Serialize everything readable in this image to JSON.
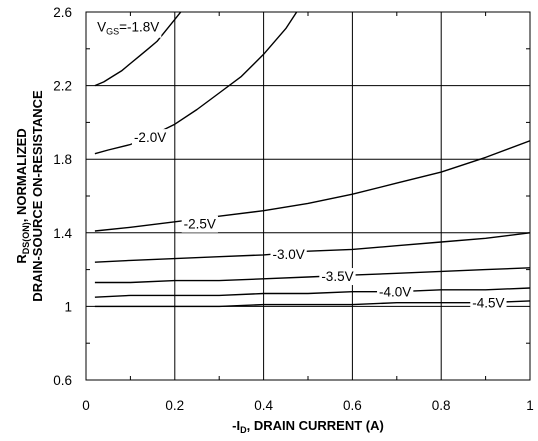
{
  "chart_data": {
    "type": "line",
    "title": "",
    "xlabel": {
      "prefix": "-I",
      "sub": "D",
      "rest": ", DRAIN CURRENT (A)"
    },
    "ylabel": {
      "line1_prefix": "R",
      "line1_sub": "DS(ON)",
      "line1_rest": ", NORMALIZED",
      "line2": "DRAIN-SOURCE ON-RESISTANCE"
    },
    "xlim": [
      0,
      1
    ],
    "ylim": [
      0.6,
      2.6
    ],
    "x_ticks": [
      "0",
      "0.2",
      "0.4",
      "0.6",
      "0.8",
      "1"
    ],
    "y_ticks": [
      "0.6",
      "1",
      "1.4",
      "1.8",
      "2.2",
      "2.6"
    ],
    "grid": true,
    "series": [
      {
        "name": "-1.8V",
        "label_prefix": "V",
        "label_sub": "GS",
        "label_rest": "=-1.8V",
        "x": [
          0.02,
          0.04,
          0.06,
          0.08,
          0.1,
          0.12,
          0.14,
          0.16,
          0.18,
          0.2,
          0.22
        ],
        "y": [
          2.2,
          2.22,
          2.25,
          2.28,
          2.32,
          2.36,
          2.4,
          2.44,
          2.5,
          2.56,
          2.62
        ]
      },
      {
        "name": "-2.0V",
        "label": "-2.0V",
        "x": [
          0.02,
          0.05,
          0.1,
          0.15,
          0.2,
          0.25,
          0.3,
          0.35,
          0.4,
          0.45,
          0.48
        ],
        "y": [
          1.83,
          1.85,
          1.88,
          1.93,
          1.99,
          2.07,
          2.16,
          2.25,
          2.37,
          2.51,
          2.62
        ]
      },
      {
        "name": "-2.5V",
        "label": "-2.5V",
        "x": [
          0.02,
          0.1,
          0.2,
          0.3,
          0.4,
          0.5,
          0.6,
          0.7,
          0.8,
          0.9,
          1.0
        ],
        "y": [
          1.41,
          1.43,
          1.46,
          1.49,
          1.52,
          1.56,
          1.61,
          1.67,
          1.73,
          1.81,
          1.9
        ]
      },
      {
        "name": "-3.0V",
        "label": "-3.0V",
        "x": [
          0.02,
          0.1,
          0.2,
          0.3,
          0.4,
          0.5,
          0.6,
          0.7,
          0.8,
          0.9,
          1.0
        ],
        "y": [
          1.24,
          1.25,
          1.26,
          1.27,
          1.28,
          1.3,
          1.31,
          1.33,
          1.35,
          1.37,
          1.4
        ]
      },
      {
        "name": "-3.5V",
        "label": "-3.5V",
        "x": [
          0.02,
          0.1,
          0.2,
          0.3,
          0.4,
          0.5,
          0.6,
          0.7,
          0.8,
          0.9,
          1.0
        ],
        "y": [
          1.13,
          1.13,
          1.14,
          1.14,
          1.15,
          1.16,
          1.17,
          1.18,
          1.19,
          1.2,
          1.21
        ]
      },
      {
        "name": "-4.0V",
        "label": "-4.0V",
        "x": [
          0.02,
          0.1,
          0.2,
          0.3,
          0.4,
          0.5,
          0.6,
          0.7,
          0.8,
          0.9,
          1.0
        ],
        "y": [
          1.05,
          1.06,
          1.06,
          1.06,
          1.07,
          1.07,
          1.08,
          1.08,
          1.09,
          1.09,
          1.1
        ]
      },
      {
        "name": "-4.5V",
        "label": "-4.5V",
        "x": [
          0.02,
          0.1,
          0.2,
          0.3,
          0.4,
          0.5,
          0.6,
          0.7,
          0.8,
          0.9,
          1.0
        ],
        "y": [
          1.0,
          1.0,
          1.0,
          1.0,
          1.01,
          1.01,
          1.01,
          1.02,
          1.02,
          1.02,
          1.03
        ]
      }
    ]
  }
}
